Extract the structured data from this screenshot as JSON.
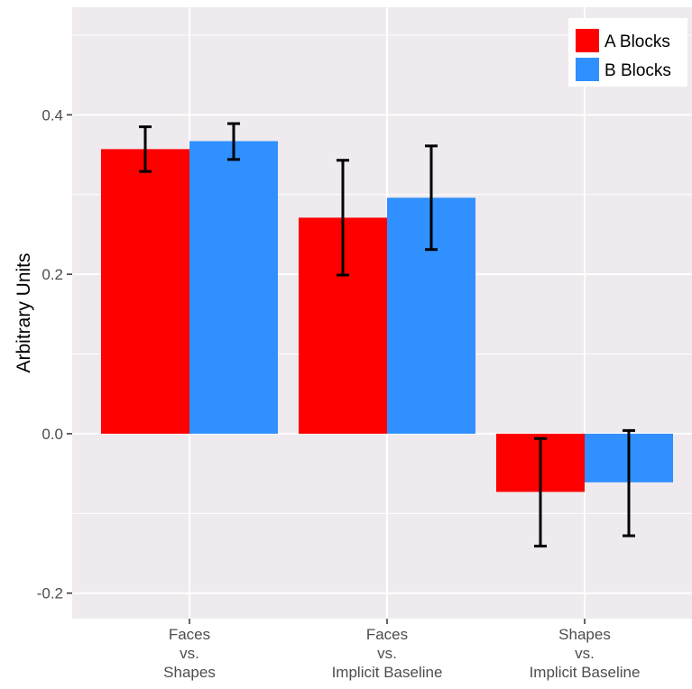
{
  "chart_data": {
    "type": "bar",
    "ylabel": "Arbitrary Units",
    "xlabel": "",
    "ylim": [
      -0.232,
      0.535
    ],
    "yticks": [
      {
        "value": -0.2,
        "label": "-0.2"
      },
      {
        "value": 0.0,
        "label": "0.0"
      },
      {
        "value": 0.2,
        "label": "0.2"
      },
      {
        "value": 0.4,
        "label": "0.4"
      }
    ],
    "grid": true,
    "legend_position": "top-right",
    "categories": [
      {
        "id": "faces-vs-shapes",
        "lines": [
          "Faces",
          "vs.",
          "Shapes"
        ]
      },
      {
        "id": "faces-vs-implicit-baseline",
        "lines": [
          "Faces",
          "vs.",
          "Implicit Baseline"
        ]
      },
      {
        "id": "shapes-vs-implicit-baseline",
        "lines": [
          "Shapes",
          "vs.",
          "Implicit Baseline"
        ]
      }
    ],
    "series": [
      {
        "name": "A Blocks",
        "color": "#ff0000",
        "values": [
          0.357,
          0.271,
          -0.073
        ],
        "error_low": [
          0.329,
          0.199,
          -0.141
        ],
        "error_high": [
          0.385,
          0.343,
          -0.006
        ]
      },
      {
        "name": "B Blocks",
        "color": "#3090ff",
        "values": [
          0.367,
          0.296,
          -0.061
        ],
        "error_low": [
          0.344,
          0.231,
          -0.128
        ],
        "error_high": [
          0.389,
          0.361,
          0.004
        ]
      }
    ]
  },
  "colors": {
    "panel_background": "#eeeaee",
    "grid_line": "#ffffff",
    "error_bar": "#000000"
  }
}
